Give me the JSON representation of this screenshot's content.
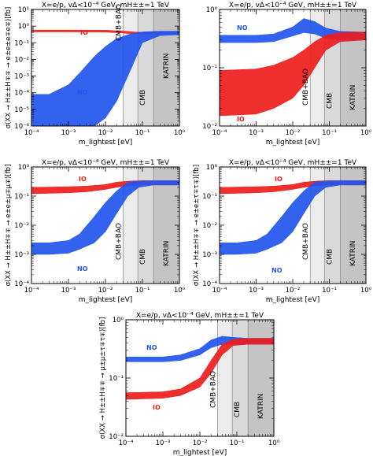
{
  "chart_data": [
    {
      "type": "area",
      "title": "X=e/p, vΔ<10⁻⁴ GeV, mH±±=1 TeV",
      "ylabel": "σ(XX → H±±H∓∓ → e±e±e∓e∓)[fb]",
      "xlabel": "m_lightest [eV]",
      "xscale": "log",
      "yscale": "log",
      "xlim": [
        0.0001,
        1
      ],
      "ylim": [
        1e-06,
        10
      ],
      "x_ticks": [
        "10⁻⁴",
        "10⁻³",
        "10⁻²",
        "10⁻¹",
        "10⁰"
      ],
      "y_ticks": [
        "10⁻⁶",
        "10⁻⁵",
        "10⁻⁴",
        "10⁻³",
        "10⁻²",
        "10⁻¹",
        "10⁰",
        "10¹"
      ],
      "regions": [
        {
          "label": "CMB+BAO",
          "x_start": 0.03,
          "x_end": 1
        },
        {
          "label": "CMB",
          "x_start": 0.075,
          "x_end": 1
        },
        {
          "label": "KATRIN",
          "x_start": 0.2,
          "x_end": 1
        }
      ],
      "series": [
        {
          "name": "IO",
          "color": "#ee1c1c",
          "x": [
            0.0001,
            0.001,
            0.01,
            0.03,
            0.06,
            0.1,
            0.3,
            1
          ],
          "y_low": [
            0.45,
            0.45,
            0.44,
            0.38,
            0.34,
            0.33,
            0.33,
            0.33
          ],
          "y_high": [
            0.58,
            0.58,
            0.57,
            0.5,
            0.45,
            0.42,
            0.41,
            0.41
          ]
        },
        {
          "name": "NO",
          "color": "#2255ee",
          "x": [
            0.0001,
            0.0003,
            0.001,
            0.002,
            0.005,
            0.01,
            0.02,
            0.05,
            0.1,
            0.3,
            1
          ],
          "y_low": [
            1e-06,
            1e-06,
            1e-06,
            1e-06,
            1e-06,
            3e-06,
            3e-05,
            0.003,
            0.1,
            0.27,
            0.3
          ],
          "y_high": [
            8e-05,
            8e-05,
            0.0003,
            0.0015,
            0.015,
            0.06,
            0.18,
            0.35,
            0.45,
            0.5,
            0.5
          ]
        }
      ]
    },
    {
      "type": "area",
      "title": "X=e/p, vΔ<10⁻⁴ GeV, mH±±=1 TeV",
      "ylabel": "",
      "xlabel": "m_lightest [eV]",
      "xscale": "log",
      "yscale": "log",
      "xlim": [
        0.0001,
        1
      ],
      "ylim": [
        0.01,
        1
      ],
      "x_ticks": [
        "10⁻⁴",
        "10⁻³",
        "10⁻²",
        "10⁻¹",
        "10⁰"
      ],
      "y_ticks": [
        "10⁻²",
        "10⁻¹",
        "10⁰"
      ],
      "regions": [
        {
          "label": "CMB+BAO",
          "x_start": 0.03,
          "x_end": 1
        },
        {
          "label": "CMB",
          "x_start": 0.075,
          "x_end": 1
        },
        {
          "label": "KATRIN",
          "x_start": 0.2,
          "x_end": 1
        }
      ],
      "series": [
        {
          "name": "NO",
          "color": "#2255ee",
          "x": [
            0.0001,
            0.001,
            0.003,
            0.01,
            0.02,
            0.04,
            0.08,
            0.2,
            1
          ],
          "y_low": [
            0.27,
            0.27,
            0.28,
            0.35,
            0.4,
            0.38,
            0.32,
            0.3,
            0.3
          ],
          "y_high": [
            0.36,
            0.36,
            0.38,
            0.5,
            0.7,
            0.62,
            0.48,
            0.42,
            0.41
          ]
        },
        {
          "name": "IO",
          "color": "#ee1c1c",
          "x": [
            0.0001,
            0.001,
            0.003,
            0.01,
            0.02,
            0.04,
            0.08,
            0.2,
            1
          ],
          "y_low": [
            0.015,
            0.016,
            0.02,
            0.03,
            0.05,
            0.1,
            0.2,
            0.28,
            0.3
          ],
          "y_high": [
            0.09,
            0.095,
            0.11,
            0.15,
            0.2,
            0.28,
            0.36,
            0.4,
            0.41
          ]
        }
      ]
    },
    {
      "type": "area",
      "title": "X=e/p, vΔ<10⁻⁴ GeV, mH±±=1 TeV",
      "ylabel": "σ(XX → H±±H∓∓ → e±e±μ∓μ∓)[fb]",
      "xlabel": "m_lightest [eV]",
      "xscale": "log",
      "yscale": "log",
      "xlim": [
        0.0001,
        1
      ],
      "ylim": [
        0.0001,
        1
      ],
      "x_ticks": [
        "10⁻⁴",
        "10⁻³",
        "10⁻²",
        "10⁻¹",
        "10⁰"
      ],
      "y_ticks": [
        "10⁻⁴",
        "10⁻³",
        "10⁻²",
        "10⁻¹",
        "10⁰"
      ],
      "regions": [
        {
          "label": "CMB+BAO",
          "x_start": 0.03,
          "x_end": 1
        },
        {
          "label": "CMB",
          "x_start": 0.075,
          "x_end": 1
        },
        {
          "label": "KATRIN",
          "x_start": 0.2,
          "x_end": 1
        }
      ],
      "series": [
        {
          "name": "IO",
          "color": "#ee1c1c",
          "x": [
            0.0001,
            0.001,
            0.003,
            0.01,
            0.02,
            0.05,
            0.1,
            0.3,
            1
          ],
          "y_low": [
            0.12,
            0.13,
            0.14,
            0.17,
            0.2,
            0.23,
            0.24,
            0.24,
            0.24
          ],
          "y_high": [
            0.2,
            0.21,
            0.22,
            0.25,
            0.3,
            0.33,
            0.34,
            0.34,
            0.34
          ]
        },
        {
          "name": "NO",
          "color": "#2255ee",
          "x": [
            0.0001,
            0.0003,
            0.001,
            0.002,
            0.005,
            0.01,
            0.02,
            0.04,
            0.08,
            0.2,
            1
          ],
          "y_low": [
            0.001,
            0.001,
            0.0011,
            0.0015,
            0.0025,
            0.006,
            0.025,
            0.1,
            0.2,
            0.24,
            0.24
          ],
          "y_high": [
            0.0025,
            0.0025,
            0.003,
            0.005,
            0.02,
            0.06,
            0.15,
            0.3,
            0.33,
            0.34,
            0.34
          ]
        }
      ]
    },
    {
      "type": "area",
      "title": "X=e/p, vΔ<10⁻⁴ GeV, mH±±=1 TeV",
      "ylabel": "σ(XX → H±±H∓∓ → e±e±τ∓τ∓)[fb]",
      "xlabel": "m_lightest [eV]",
      "xscale": "log",
      "yscale": "log",
      "xlim": [
        0.0001,
        1
      ],
      "ylim": [
        0.0001,
        1
      ],
      "x_ticks": [
        "10⁻⁴",
        "10⁻³",
        "10⁻²",
        "10⁻¹",
        "10⁰"
      ],
      "y_ticks": [
        "10⁻⁴",
        "10⁻³",
        "10⁻²",
        "10⁻¹",
        "10⁰"
      ],
      "regions": [
        {
          "label": "CMB+BAO",
          "x_start": 0.03,
          "x_end": 1
        },
        {
          "label": "CMB",
          "x_start": 0.075,
          "x_end": 1
        },
        {
          "label": "KATRIN",
          "x_start": 0.2,
          "x_end": 1
        }
      ],
      "series": [
        {
          "name": "IO",
          "color": "#ee1c1c",
          "x": [
            0.0001,
            0.001,
            0.003,
            0.01,
            0.02,
            0.05,
            0.1,
            0.3,
            1
          ],
          "y_low": [
            0.12,
            0.13,
            0.14,
            0.17,
            0.2,
            0.23,
            0.24,
            0.24,
            0.24
          ],
          "y_high": [
            0.2,
            0.21,
            0.22,
            0.25,
            0.3,
            0.33,
            0.34,
            0.34,
            0.34
          ]
        },
        {
          "name": "NO",
          "color": "#2255ee",
          "x": [
            0.0001,
            0.0003,
            0.001,
            0.002,
            0.005,
            0.01,
            0.02,
            0.04,
            0.08,
            0.2,
            1
          ],
          "y_low": [
            0.001,
            0.001,
            0.0011,
            0.0015,
            0.0025,
            0.006,
            0.025,
            0.1,
            0.2,
            0.24,
            0.24
          ],
          "y_high": [
            0.0025,
            0.0025,
            0.003,
            0.005,
            0.02,
            0.06,
            0.15,
            0.3,
            0.33,
            0.34,
            0.34
          ]
        }
      ]
    },
    {
      "type": "area",
      "title": "X=e/p, vΔ<10⁻⁴ GeV, mH±±=1 TeV",
      "ylabel": "σ(XX → H±±H∓∓ → μ±μ±τ∓τ∓)[fb]",
      "xlabel": "m_lightest [eV]",
      "xscale": "log",
      "yscale": "log",
      "xlim": [
        0.0001,
        1
      ],
      "ylim": [
        0.01,
        1
      ],
      "x_ticks": [
        "10⁻⁴",
        "10⁻³",
        "10⁻²",
        "10⁻¹",
        "10⁰"
      ],
      "y_ticks": [
        "10⁻²",
        "10⁻¹",
        "10⁰"
      ],
      "regions": [
        {
          "label": "CMB+BAO",
          "x_start": 0.03,
          "x_end": 1
        },
        {
          "label": "CMB",
          "x_start": 0.075,
          "x_end": 1
        },
        {
          "label": "KATRIN",
          "x_start": 0.2,
          "x_end": 1
        }
      ],
      "series": [
        {
          "name": "NO",
          "color": "#2255ee",
          "x": [
            0.0001,
            0.001,
            0.003,
            0.01,
            0.02,
            0.04,
            0.08,
            0.2,
            1
          ],
          "y_low": [
            0.19,
            0.19,
            0.2,
            0.25,
            0.33,
            0.38,
            0.38,
            0.38,
            0.38
          ],
          "y_high": [
            0.23,
            0.23,
            0.25,
            0.32,
            0.45,
            0.52,
            0.5,
            0.48,
            0.48
          ]
        },
        {
          "name": "IO",
          "color": "#ee1c1c",
          "x": [
            0.0001,
            0.001,
            0.003,
            0.01,
            0.02,
            0.04,
            0.08,
            0.2,
            1
          ],
          "y_low": [
            0.043,
            0.045,
            0.05,
            0.07,
            0.12,
            0.25,
            0.36,
            0.38,
            0.38
          ],
          "y_high": [
            0.056,
            0.058,
            0.065,
            0.1,
            0.2,
            0.38,
            0.46,
            0.48,
            0.48
          ]
        }
      ]
    }
  ]
}
